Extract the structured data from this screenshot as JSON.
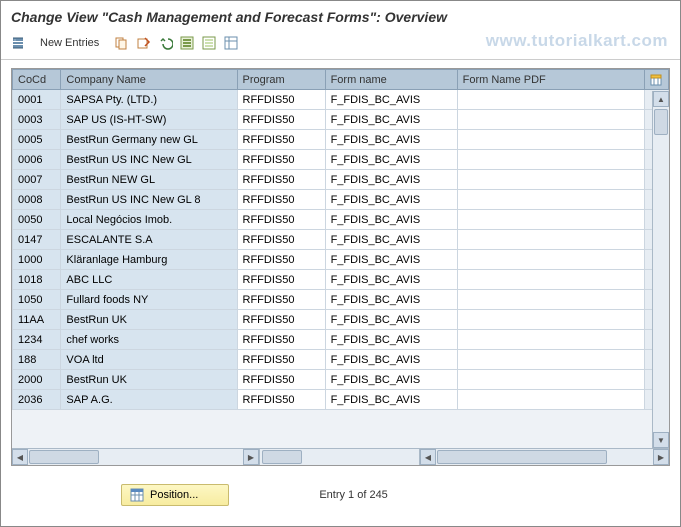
{
  "title": "Change View \"Cash Management and Forecast Forms\": Overview",
  "toolbar": {
    "new_entries_label": "New Entries"
  },
  "watermark": "www.tutorialkart.com",
  "columns": {
    "cocd": "CoCd",
    "company": "Company Name",
    "program": "Program",
    "form": "Form name",
    "pdf": "Form Name PDF"
  },
  "rows": [
    {
      "cocd": "0001",
      "company": "SAPSA Pty. (LTD.)",
      "program": "RFFDIS50",
      "form": "F_FDIS_BC_AVIS",
      "pdf": ""
    },
    {
      "cocd": "0003",
      "company": "SAP US (IS-HT-SW)",
      "program": "RFFDIS50",
      "form": "F_FDIS_BC_AVIS",
      "pdf": ""
    },
    {
      "cocd": "0005",
      "company": "BestRun Germany new GL",
      "program": "RFFDIS50",
      "form": "F_FDIS_BC_AVIS",
      "pdf": ""
    },
    {
      "cocd": "0006",
      "company": "BestRun US INC New GL",
      "program": "RFFDIS50",
      "form": "F_FDIS_BC_AVIS",
      "pdf": ""
    },
    {
      "cocd": "0007",
      "company": "BestRun NEW GL",
      "program": "RFFDIS50",
      "form": "F_FDIS_BC_AVIS",
      "pdf": ""
    },
    {
      "cocd": "0008",
      "company": "BestRun US INC New GL 8",
      "program": "RFFDIS50",
      "form": "F_FDIS_BC_AVIS",
      "pdf": ""
    },
    {
      "cocd": "0050",
      "company": "Local Negócios Imob.",
      "program": "RFFDIS50",
      "form": "F_FDIS_BC_AVIS",
      "pdf": ""
    },
    {
      "cocd": "0147",
      "company": "ESCALANTE S.A",
      "program": "RFFDIS50",
      "form": "F_FDIS_BC_AVIS",
      "pdf": ""
    },
    {
      "cocd": "1000",
      "company": "Kläranlage Hamburg",
      "program": "RFFDIS50",
      "form": "F_FDIS_BC_AVIS",
      "pdf": ""
    },
    {
      "cocd": "1018",
      "company": "ABC LLC",
      "program": "RFFDIS50",
      "form": "F_FDIS_BC_AVIS",
      "pdf": ""
    },
    {
      "cocd": "1050",
      "company": "Fullard foods NY",
      "program": "RFFDIS50",
      "form": "F_FDIS_BC_AVIS",
      "pdf": ""
    },
    {
      "cocd": "11AA",
      "company": "BestRun UK",
      "program": "RFFDIS50",
      "form": "F_FDIS_BC_AVIS",
      "pdf": ""
    },
    {
      "cocd": "1234",
      "company": "chef works",
      "program": "RFFDIS50",
      "form": "F_FDIS_BC_AVIS",
      "pdf": ""
    },
    {
      "cocd": "188",
      "company": "VOA ltd",
      "program": "RFFDIS50",
      "form": "F_FDIS_BC_AVIS",
      "pdf": ""
    },
    {
      "cocd": "2000",
      "company": "BestRun UK",
      "program": "RFFDIS50",
      "form": "F_FDIS_BC_AVIS",
      "pdf": ""
    },
    {
      "cocd": "2036",
      "company": "SAP A.G.",
      "program": "RFFDIS50",
      "form": "F_FDIS_BC_AVIS",
      "pdf": ""
    }
  ],
  "footer": {
    "position_label": "Position...",
    "entry_text": "Entry 1 of 245"
  },
  "colors": {
    "header_bg": "#b6c8d8",
    "key_bg": "#d7e4ef",
    "cell_bg": "#ffffff",
    "border": "#ccd6e0",
    "watermark": "#c8d8e8",
    "pos_btn_bg": "#f9f0b0"
  }
}
